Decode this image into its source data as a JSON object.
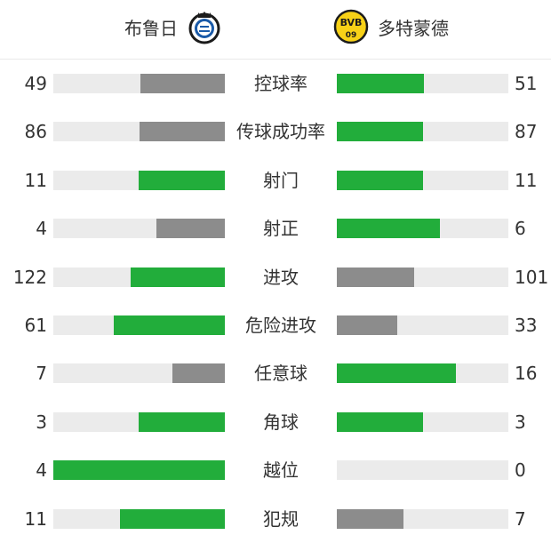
{
  "teams": {
    "home": {
      "name": "布鲁日",
      "logo_icon": "club-brugge-crest-icon"
    },
    "away": {
      "name": "多特蒙德",
      "logo_icon": "bvb-09-crest-icon",
      "logo_text_top": "BVB",
      "logo_text_bottom": "09"
    }
  },
  "colors": {
    "leader": "#22ad3b",
    "trailer": "#8c8c8c",
    "track": "#ebebeb",
    "text": "#333333"
  },
  "chart_data": {
    "type": "bar",
    "orientation": "mirrored-horizontal",
    "series": [
      {
        "name": "布鲁日",
        "values": [
          49,
          86,
          11,
          4,
          122,
          61,
          7,
          3,
          4,
          11
        ]
      },
      {
        "name": "多特蒙德",
        "values": [
          51,
          87,
          11,
          6,
          101,
          33,
          16,
          3,
          0,
          7
        ]
      }
    ],
    "categories": [
      "控球率",
      "传球成功率",
      "射门",
      "射正",
      "进攻",
      "危险进攻",
      "任意球",
      "角球",
      "越位",
      "犯规"
    ],
    "stats": [
      {
        "label": "控球率",
        "home": "49",
        "away": "51",
        "home_share": 0.49,
        "away_share": 0.51
      },
      {
        "label": "传球成功率",
        "home": "86",
        "away": "87",
        "home_share": 0.497,
        "away_share": 0.503
      },
      {
        "label": "射门",
        "home": "11",
        "away": "11",
        "home_share": 0.5,
        "away_share": 0.5
      },
      {
        "label": "射正",
        "home": "4",
        "away": "6",
        "home_share": 0.4,
        "away_share": 0.6
      },
      {
        "label": "进攻",
        "home": "122",
        "away": "101",
        "home_share": 0.547,
        "away_share": 0.453
      },
      {
        "label": "危险进攻",
        "home": "61",
        "away": "33",
        "home_share": 0.649,
        "away_share": 0.351
      },
      {
        "label": "任意球",
        "home": "7",
        "away": "16",
        "home_share": 0.304,
        "away_share": 0.696
      },
      {
        "label": "角球",
        "home": "3",
        "away": "3",
        "home_share": 0.5,
        "away_share": 0.5
      },
      {
        "label": "越位",
        "home": "4",
        "away": "0",
        "home_share": 1.0,
        "away_share": 0.0
      },
      {
        "label": "犯规",
        "home": "11",
        "away": "7",
        "home_share": 0.611,
        "away_share": 0.389
      }
    ],
    "title": "",
    "xlabel": "",
    "ylabel": "",
    "legend": "none",
    "grid": false
  }
}
